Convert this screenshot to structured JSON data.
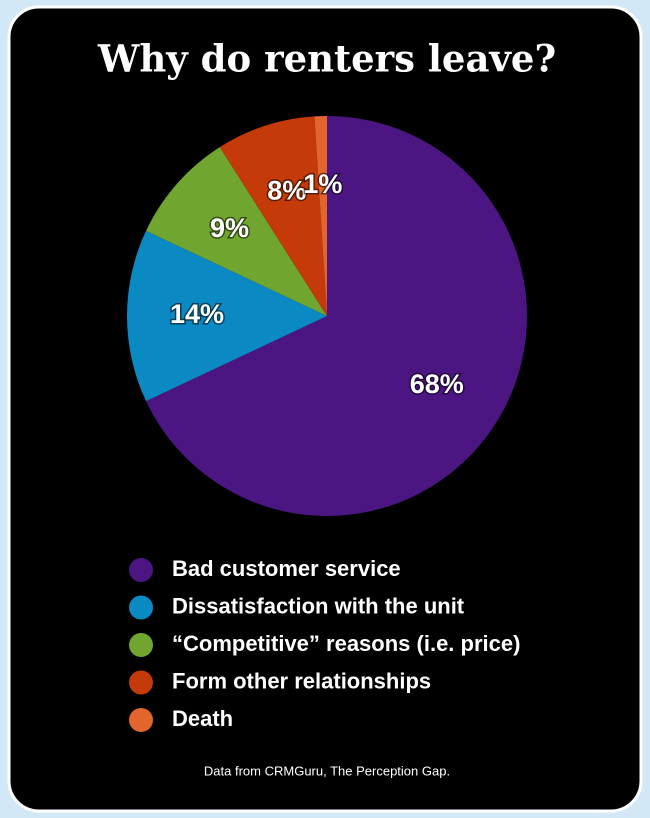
{
  "chart_data": {
    "type": "pie",
    "title": "Why do renters leave?",
    "categories": [
      "Bad customer service",
      "Dissatisfaction with the unit",
      "“Competitive” reasons (i.e. price)",
      "Form other relationships",
      "Death"
    ],
    "values": [
      68,
      14,
      9,
      8,
      1
    ],
    "value_labels": [
      "68%",
      "14%",
      "9%",
      "8%",
      "1%"
    ],
    "colors": [
      "#4c1682",
      "#0a89c2",
      "#70a62f",
      "#c43a08",
      "#e1652c"
    ],
    "footnote": "Data from CRMGuru, The Perception Gap."
  }
}
